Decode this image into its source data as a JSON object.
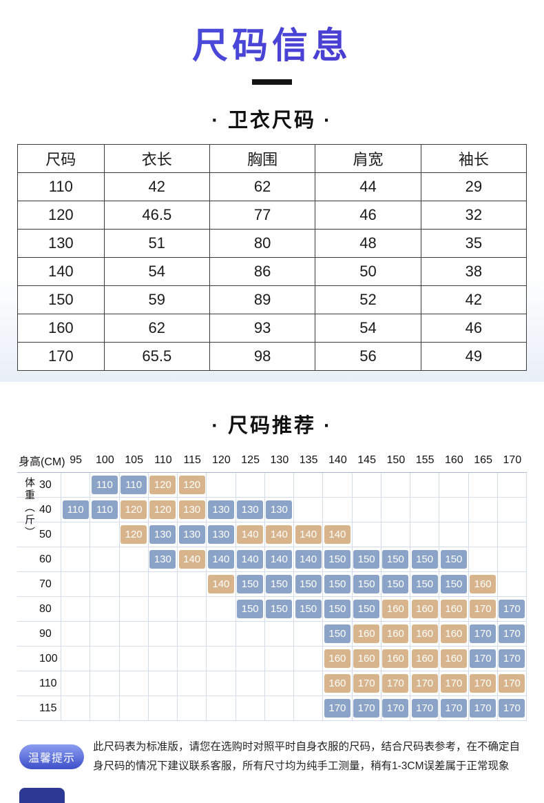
{
  "page": {
    "title": "尺码信息",
    "section_hoodie": "· 卫衣尺码 ·",
    "section_recommend": "· 尺码推荐 ·"
  },
  "size_table": {
    "headers": [
      "尺码",
      "衣长",
      "胸围",
      "肩宽",
      "袖长"
    ],
    "rows": [
      [
        "110",
        "42",
        "62",
        "44",
        "29"
      ],
      [
        "120",
        "46.5",
        "77",
        "46",
        "32"
      ],
      [
        "130",
        "51",
        "80",
        "48",
        "35"
      ],
      [
        "140",
        "54",
        "86",
        "50",
        "38"
      ],
      [
        "150",
        "59",
        "89",
        "52",
        "42"
      ],
      [
        "160",
        "62",
        "93",
        "54",
        "46"
      ],
      [
        "170",
        "65.5",
        "98",
        "56",
        "49"
      ]
    ]
  },
  "recommend": {
    "height_label": "身高(CM)",
    "weight_label": "体重（斤）",
    "heights": [
      "95",
      "100",
      "105",
      "110",
      "115",
      "120",
      "125",
      "130",
      "135",
      "140",
      "145",
      "150",
      "155",
      "160",
      "165",
      "170"
    ],
    "colors": {
      "blue": "#8ba3c7",
      "tan": "#d7b48c"
    },
    "matrix": [
      {
        "weight": "30",
        "cells": [
          null,
          "110b",
          "110b",
          "120t",
          "120t",
          null,
          null,
          null,
          null,
          null,
          null,
          null,
          null,
          null,
          null,
          null
        ]
      },
      {
        "weight": "40",
        "cells": [
          "110b",
          "110b",
          "120t",
          "120t",
          "130t",
          "130b",
          "130b",
          "130b",
          null,
          null,
          null,
          null,
          null,
          null,
          null,
          null
        ]
      },
      {
        "weight": "50",
        "cells": [
          null,
          null,
          "120t",
          "130b",
          "130b",
          "130b",
          "140t",
          "140t",
          "140t",
          "140t",
          null,
          null,
          null,
          null,
          null,
          null
        ]
      },
      {
        "weight": "60",
        "cells": [
          null,
          null,
          null,
          "130b",
          "140t",
          "140b",
          "140b",
          "140b",
          "140b",
          "150b",
          "150b",
          "150b",
          "150b",
          "150b",
          null,
          null
        ]
      },
      {
        "weight": "70",
        "cells": [
          null,
          null,
          null,
          null,
          null,
          "140t",
          "150b",
          "150b",
          "150b",
          "150b",
          "150b",
          "150b",
          "150b",
          "150b",
          "160t",
          null
        ]
      },
      {
        "weight": "80",
        "cells": [
          null,
          null,
          null,
          null,
          null,
          null,
          "150b",
          "150b",
          "150b",
          "150b",
          "150b",
          "160t",
          "160t",
          "160t",
          "170t",
          "170b"
        ]
      },
      {
        "weight": "90",
        "cells": [
          null,
          null,
          null,
          null,
          null,
          null,
          null,
          null,
          null,
          "150b",
          "160t",
          "160t",
          "160t",
          "160t",
          "170b",
          "170b"
        ]
      },
      {
        "weight": "100",
        "cells": [
          null,
          null,
          null,
          null,
          null,
          null,
          null,
          null,
          null,
          "160t",
          "160t",
          "160t",
          "160t",
          "160t",
          "170b",
          "170b"
        ]
      },
      {
        "weight": "110",
        "cells": [
          null,
          null,
          null,
          null,
          null,
          null,
          null,
          null,
          null,
          "160t",
          "170t",
          "170t",
          "170t",
          "170t",
          "170t",
          "170t"
        ]
      },
      {
        "weight": "115",
        "cells": [
          null,
          null,
          null,
          null,
          null,
          null,
          null,
          null,
          null,
          "170b",
          "170b",
          "170b",
          "170b",
          "170b",
          "170b",
          "170b"
        ]
      }
    ]
  },
  "notice": {
    "badge": "温馨提示",
    "text": "此尺码表为标准版，请您在选购时对照平时自身衣服的尺码，结合尺码表参考，在不确定自身尺码的情况下建议联系客服，所有尺寸均为纯手工测量，稍有1-3CM误差属于正常现象"
  }
}
